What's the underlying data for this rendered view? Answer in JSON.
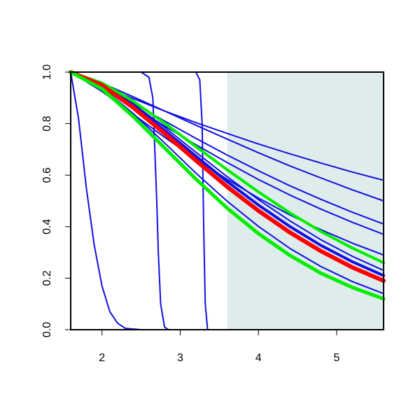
{
  "chart_data": {
    "type": "line",
    "xlim": [
      1.6,
      5.6
    ],
    "ylim": [
      0,
      1
    ],
    "xticks": [
      2,
      3,
      4,
      5
    ],
    "yticks": [
      {
        "value": 0,
        "label": "0.0"
      },
      {
        "value": 0.2,
        "label": "0.2"
      },
      {
        "value": 0.4,
        "label": "0.4"
      },
      {
        "value": 0.6,
        "label": "0.6"
      },
      {
        "value": 0.8,
        "label": "0.8"
      },
      {
        "value": 1,
        "label": "1.0"
      }
    ],
    "shaded_region": {
      "x": [
        3.6,
        5.6
      ],
      "color": "#dfecec"
    },
    "x": [
      1.6,
      2.0,
      2.4,
      2.8,
      3.2,
      3.6,
      4.0,
      4.4,
      4.8,
      5.2,
      5.6
    ],
    "series": [
      {
        "color": "#1010e0",
        "width": 2,
        "x": [
          1.6,
          1.7,
          1.8,
          1.9,
          2.0,
          2.1,
          2.2,
          2.3,
          2.5,
          5.6
        ],
        "values": [
          1,
          0.82,
          0.55,
          0.33,
          0.17,
          0.07,
          0.025,
          0.005,
          0,
          0
        ]
      },
      {
        "color": "#1010e0",
        "width": 2,
        "x": [
          1.6,
          2.5,
          2.6,
          2.65,
          2.7,
          2.72,
          2.75,
          2.8,
          2.85,
          5.6
        ],
        "values": [
          1,
          1,
          0.98,
          0.9,
          0.5,
          0.3,
          0.1,
          0.01,
          0,
          0
        ]
      },
      {
        "color": "#1010e0",
        "width": 2,
        "x": [
          1.6,
          3.2,
          3.25,
          3.28,
          3.3,
          3.32,
          3.35,
          5.6
        ],
        "values": [
          1,
          1,
          0.97,
          0.8,
          0.4,
          0.1,
          0,
          0
        ]
      },
      {
        "color": "#1010e0",
        "width": 2,
        "values": [
          1,
          0.947,
          0.897,
          0.849,
          0.804,
          0.762,
          0.721,
          0.683,
          0.647,
          0.612,
          0.58
        ]
      },
      {
        "color": "#1010e0",
        "width": 2,
        "values": [
          1,
          0.957,
          0.904,
          0.849,
          0.794,
          0.74,
          0.687,
          0.636,
          0.589,
          0.543,
          0.5
        ]
      },
      {
        "color": "#1010e0",
        "width": 2,
        "values": [
          1,
          0.945,
          0.879,
          0.81,
          0.743,
          0.678,
          0.617,
          0.559,
          0.506,
          0.456,
          0.41
        ]
      },
      {
        "color": "#1010e0",
        "width": 2,
        "values": [
          1,
          0.939,
          0.866,
          0.791,
          0.718,
          0.649,
          0.583,
          0.523,
          0.468,
          0.417,
          0.37
        ]
      },
      {
        "color": "#1010e0",
        "width": 2,
        "values": [
          1,
          0.925,
          0.836,
          0.747,
          0.662,
          0.584,
          0.511,
          0.446,
          0.388,
          0.336,
          0.29
        ]
      },
      {
        "color": "#1010e0",
        "width": 2,
        "values": [
          1,
          0.955,
          0.877,
          0.786,
          0.689,
          0.594,
          0.505,
          0.423,
          0.349,
          0.285,
          0.23
        ]
      },
      {
        "color": "#1010e0",
        "width": 4,
        "values": [
          1,
          0.952,
          0.87,
          0.774,
          0.674,
          0.575,
          0.484,
          0.401,
          0.327,
          0.264,
          0.21
        ]
      },
      {
        "color": "#1010e0",
        "width": 2,
        "values": [
          1,
          0.94,
          0.839,
          0.725,
          0.608,
          0.499,
          0.401,
          0.316,
          0.245,
          0.187,
          0.14
        ]
      },
      {
        "color": "#00ee00",
        "width": 4,
        "values": [
          1,
          0.958,
          0.887,
          0.802,
          0.711,
          0.621,
          0.535,
          0.454,
          0.381,
          0.317,
          0.26
        ]
      },
      {
        "color": "#ff0000",
        "width": 6,
        "values": [
          1,
          0.949,
          0.862,
          0.762,
          0.657,
          0.555,
          0.462,
          0.378,
          0.305,
          0.242,
          0.19
        ]
      },
      {
        "color": "#00ee00",
        "width": 5,
        "values": [
          1,
          0.935,
          0.827,
          0.706,
          0.585,
          0.472,
          0.373,
          0.289,
          0.219,
          0.164,
          0.12
        ]
      }
    ]
  }
}
